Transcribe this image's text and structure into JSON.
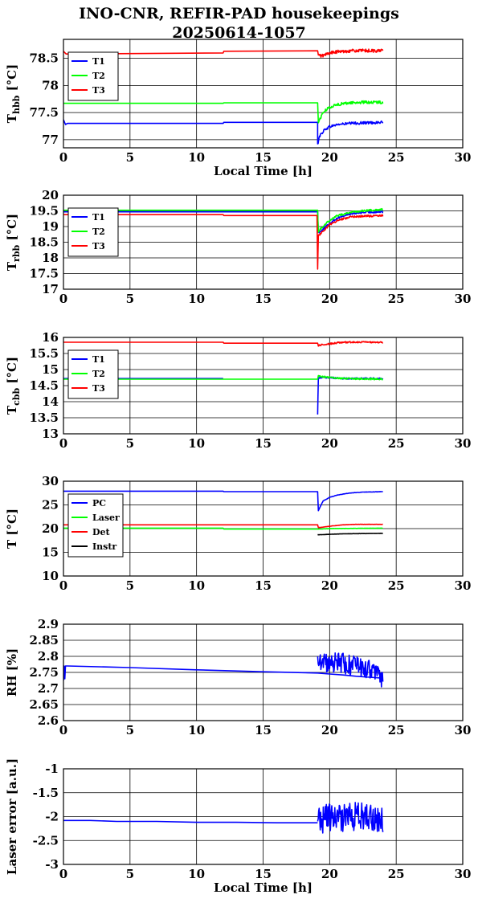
{
  "title": {
    "line1": "INO-CNR, REFIR-PAD housekeepings",
    "line2": "20250614-1057"
  },
  "chart_data": [
    {
      "type": "line",
      "ylabel_main": "T",
      "ylabel_sub": "hbb",
      "ylabel_unit": "[°C]",
      "xlabel": "Local Time [h]",
      "xlim": [
        0,
        30
      ],
      "ylim": [
        76.85,
        78.85
      ],
      "xticks": [
        0,
        5,
        10,
        15,
        20,
        25,
        30
      ],
      "yticks": [
        77,
        77.5,
        78,
        78.5
      ],
      "grid": true,
      "legend_position": "top-left",
      "series": [
        {
          "name": "T1",
          "color": "#0000ff",
          "noise": 0.025,
          "x": [
            0,
            0.15,
            0.3,
            5,
            12,
            12.05,
            19.1,
            19.1,
            19.2,
            19.6,
            20.0,
            20.6,
            21.5,
            22.5,
            24.0
          ],
          "y": [
            77.37,
            77.28,
            77.3,
            77.3,
            77.3,
            77.32,
            77.32,
            76.9,
            77.05,
            77.18,
            77.24,
            77.28,
            77.3,
            77.31,
            77.32
          ]
        },
        {
          "name": "T2",
          "color": "#00ff00",
          "noise": 0.025,
          "x": [
            0,
            12,
            12.05,
            19.1,
            19.15,
            19.5,
            20.0,
            20.6,
            21.5,
            22.5,
            24.0
          ],
          "y": [
            77.67,
            77.67,
            77.68,
            77.68,
            77.32,
            77.5,
            77.6,
            77.65,
            77.68,
            77.69,
            77.69
          ]
        },
        {
          "name": "T3",
          "color": "#ff0000",
          "noise": 0.03,
          "x": [
            0,
            0.2,
            12,
            12.05,
            19.1,
            19.15,
            19.5,
            20.0,
            20.6,
            21.5,
            24.0
          ],
          "y": [
            78.63,
            78.58,
            78.6,
            78.63,
            78.64,
            78.55,
            78.55,
            78.6,
            78.62,
            78.64,
            78.64
          ]
        }
      ]
    },
    {
      "type": "line",
      "ylabel_main": "T",
      "ylabel_sub": "rbb",
      "ylabel_unit": "[°C]",
      "xlabel": "",
      "xlim": [
        0,
        30
      ],
      "ylim": [
        17,
        20
      ],
      "xticks": [
        0,
        5,
        10,
        15,
        20,
        25,
        30
      ],
      "yticks": [
        17,
        17.5,
        18,
        18.5,
        19,
        19.5,
        20
      ],
      "grid": true,
      "legend_position": "top-left",
      "series": [
        {
          "name": "T1",
          "color": "#0000ff",
          "noise": 0.03,
          "x": [
            0,
            12,
            12.05,
            19.1,
            19.15,
            19.6,
            20.0,
            20.6,
            21.5,
            22.5,
            24.0
          ],
          "y": [
            19.47,
            19.47,
            19.47,
            19.47,
            18.8,
            18.95,
            19.1,
            19.28,
            19.4,
            19.45,
            19.47
          ]
        },
        {
          "name": "T2",
          "color": "#00ff00",
          "noise": 0.03,
          "x": [
            0,
            12,
            12.05,
            19.1,
            19.15,
            19.6,
            20.0,
            20.6,
            21.5,
            22.5,
            24.0
          ],
          "y": [
            19.52,
            19.52,
            19.52,
            19.52,
            18.85,
            19.05,
            19.2,
            19.35,
            19.45,
            19.5,
            19.55
          ]
        },
        {
          "name": "T3",
          "color": "#ff0000",
          "noise": 0.03,
          "x": [
            0,
            12,
            12.05,
            19.05,
            19.1,
            19.15,
            19.6,
            20.0,
            20.6,
            21.5,
            22.5,
            24.0
          ],
          "y": [
            19.38,
            19.38,
            19.35,
            19.35,
            17.65,
            18.7,
            18.9,
            19.05,
            19.2,
            19.3,
            19.33,
            19.35
          ]
        }
      ]
    },
    {
      "type": "line",
      "ylabel_main": "T",
      "ylabel_sub": "cbb",
      "ylabel_unit": "[°C]",
      "xlabel": "",
      "xlim": [
        0,
        30
      ],
      "ylim": [
        13,
        16
      ],
      "xticks": [
        0,
        5,
        10,
        15,
        20,
        25,
        30
      ],
      "yticks": [
        13,
        13.5,
        14,
        14.5,
        15,
        15.5,
        16
      ],
      "grid": true,
      "legend_position": "top-left",
      "series": [
        {
          "name": "T1",
          "color": "#0000ff",
          "noise": 0.025,
          "x": [
            0,
            12,
            12.0,
            19.05,
            19.1,
            19.15,
            20.0,
            21.0,
            24.0
          ],
          "y": [
            14.72,
            14.72,
            null,
            null,
            13.6,
            14.75,
            14.75,
            14.72,
            14.72
          ]
        },
        {
          "name": "T2",
          "color": "#00ff00",
          "noise": 0.025,
          "x": [
            0,
            12,
            12.05,
            19.1,
            19.15,
            20.0,
            21.0,
            24.0
          ],
          "y": [
            14.7,
            14.7,
            14.7,
            14.7,
            14.8,
            14.75,
            14.72,
            14.7
          ]
        },
        {
          "name": "T3",
          "color": "#ff0000",
          "noise": 0.025,
          "x": [
            0,
            12,
            12.05,
            19.1,
            19.15,
            19.6,
            20.5,
            21.5,
            24.0
          ],
          "y": [
            15.85,
            15.85,
            15.82,
            15.82,
            15.75,
            15.78,
            15.83,
            15.85,
            15.85
          ]
        }
      ]
    },
    {
      "type": "line",
      "ylabel_main": "T [°C]",
      "ylabel_sub": "",
      "ylabel_unit": "",
      "xlabel": "",
      "xlim": [
        0,
        30
      ],
      "ylim": [
        10,
        30
      ],
      "xticks": [
        0,
        5,
        10,
        15,
        20,
        25,
        30
      ],
      "yticks": [
        10,
        15,
        20,
        25,
        30
      ],
      "grid": true,
      "legend_position": "top-left",
      "series": [
        {
          "name": "PC",
          "color": "#0000ff",
          "noise": 0.03,
          "x": [
            0,
            12,
            12.05,
            19.1,
            19.15,
            19.5,
            20.0,
            20.6,
            21.5,
            22.5,
            24.0
          ],
          "y": [
            27.9,
            27.9,
            27.8,
            27.8,
            23.8,
            25.8,
            26.6,
            27.1,
            27.5,
            27.7,
            27.8
          ]
        },
        {
          "name": "Laser",
          "color": "#00ff00",
          "noise": 0.02,
          "x": [
            0,
            12,
            12.05,
            19.1,
            20.0,
            24.0
          ],
          "y": [
            20.1,
            20.1,
            19.9,
            19.9,
            20.0,
            20.1
          ]
        },
        {
          "name": "Det",
          "color": "#ff0000",
          "noise": 0.02,
          "x": [
            0,
            19.1,
            19.15,
            20.0,
            21.0,
            22.0,
            24.0
          ],
          "y": [
            20.8,
            20.8,
            20.2,
            20.5,
            20.8,
            20.9,
            20.9
          ]
        },
        {
          "name": "Instr",
          "color": "#000000",
          "noise": 0.02,
          "x": [
            19.1,
            20.0,
            21.0,
            24.0
          ],
          "y": [
            18.7,
            18.8,
            18.9,
            19.0
          ]
        }
      ]
    },
    {
      "type": "line",
      "ylabel_main": "RH [%]",
      "ylabel_sub": "",
      "ylabel_unit": "",
      "xlabel": "",
      "xlim": [
        0,
        30
      ],
      "ylim": [
        2.6,
        2.9
      ],
      "xticks": [
        0,
        5,
        10,
        15,
        20,
        25,
        30
      ],
      "yticks": [
        2.6,
        2.65,
        2.7,
        2.75,
        2.8,
        2.85,
        2.9
      ],
      "grid": true,
      "legend_position": "none",
      "series": [
        {
          "name": "",
          "color": "#0000ff",
          "noise": 0.0,
          "x": [
            0,
            0.05,
            0.1,
            0.15,
            0.2,
            0.3,
            5,
            10,
            15,
            19.1,
            20.0,
            21.0,
            22.0,
            23.0,
            24.0
          ],
          "y": [
            2.725,
            2.77,
            2.73,
            2.77,
            2.77,
            2.77,
            2.765,
            2.758,
            2.752,
            2.748,
            2.745,
            2.742,
            2.738,
            2.735,
            2.732
          ]
        },
        {
          "name": "",
          "color": "#0000ff",
          "noise": 0.035,
          "x": [
            19.1,
            19.3,
            19.6,
            20.0,
            20.6,
            21.2,
            21.8,
            22.4,
            23.0,
            23.6,
            24.0
          ],
          "y": [
            2.8,
            2.79,
            2.785,
            2.78,
            2.78,
            2.775,
            2.77,
            2.765,
            2.76,
            2.74,
            2.73
          ]
        }
      ]
    },
    {
      "type": "line",
      "ylabel_main": "Laser error [a.u.]",
      "ylabel_sub": "",
      "ylabel_unit": "",
      "xlabel": "Local Time [h]",
      "xlim": [
        0,
        30
      ],
      "ylim": [
        -3,
        -1
      ],
      "xticks": [
        0,
        5,
        10,
        15,
        20,
        25,
        30
      ],
      "yticks": [
        -3,
        -2.5,
        -2,
        -1.5,
        -1
      ],
      "grid": true,
      "legend_position": "none",
      "series": [
        {
          "name": "",
          "color": "#0000ff",
          "noise": 0.0,
          "x": [
            0,
            2,
            4,
            7,
            10,
            13,
            16,
            19.1
          ],
          "y": [
            -2.08,
            -2.08,
            -2.1,
            -2.1,
            -2.12,
            -2.12,
            -2.13,
            -2.13
          ]
        },
        {
          "name": "",
          "color": "#0000ff",
          "noise": 0.3,
          "x": [
            19.1,
            19.6,
            20.2,
            20.8,
            21.4,
            22.0,
            22.6,
            23.2,
            24.0
          ],
          "y": [
            -2.1,
            -2.05,
            -2.0,
            -2.05,
            -2.0,
            -2.0,
            -2.0,
            -2.05,
            -2.05
          ]
        }
      ]
    }
  ]
}
